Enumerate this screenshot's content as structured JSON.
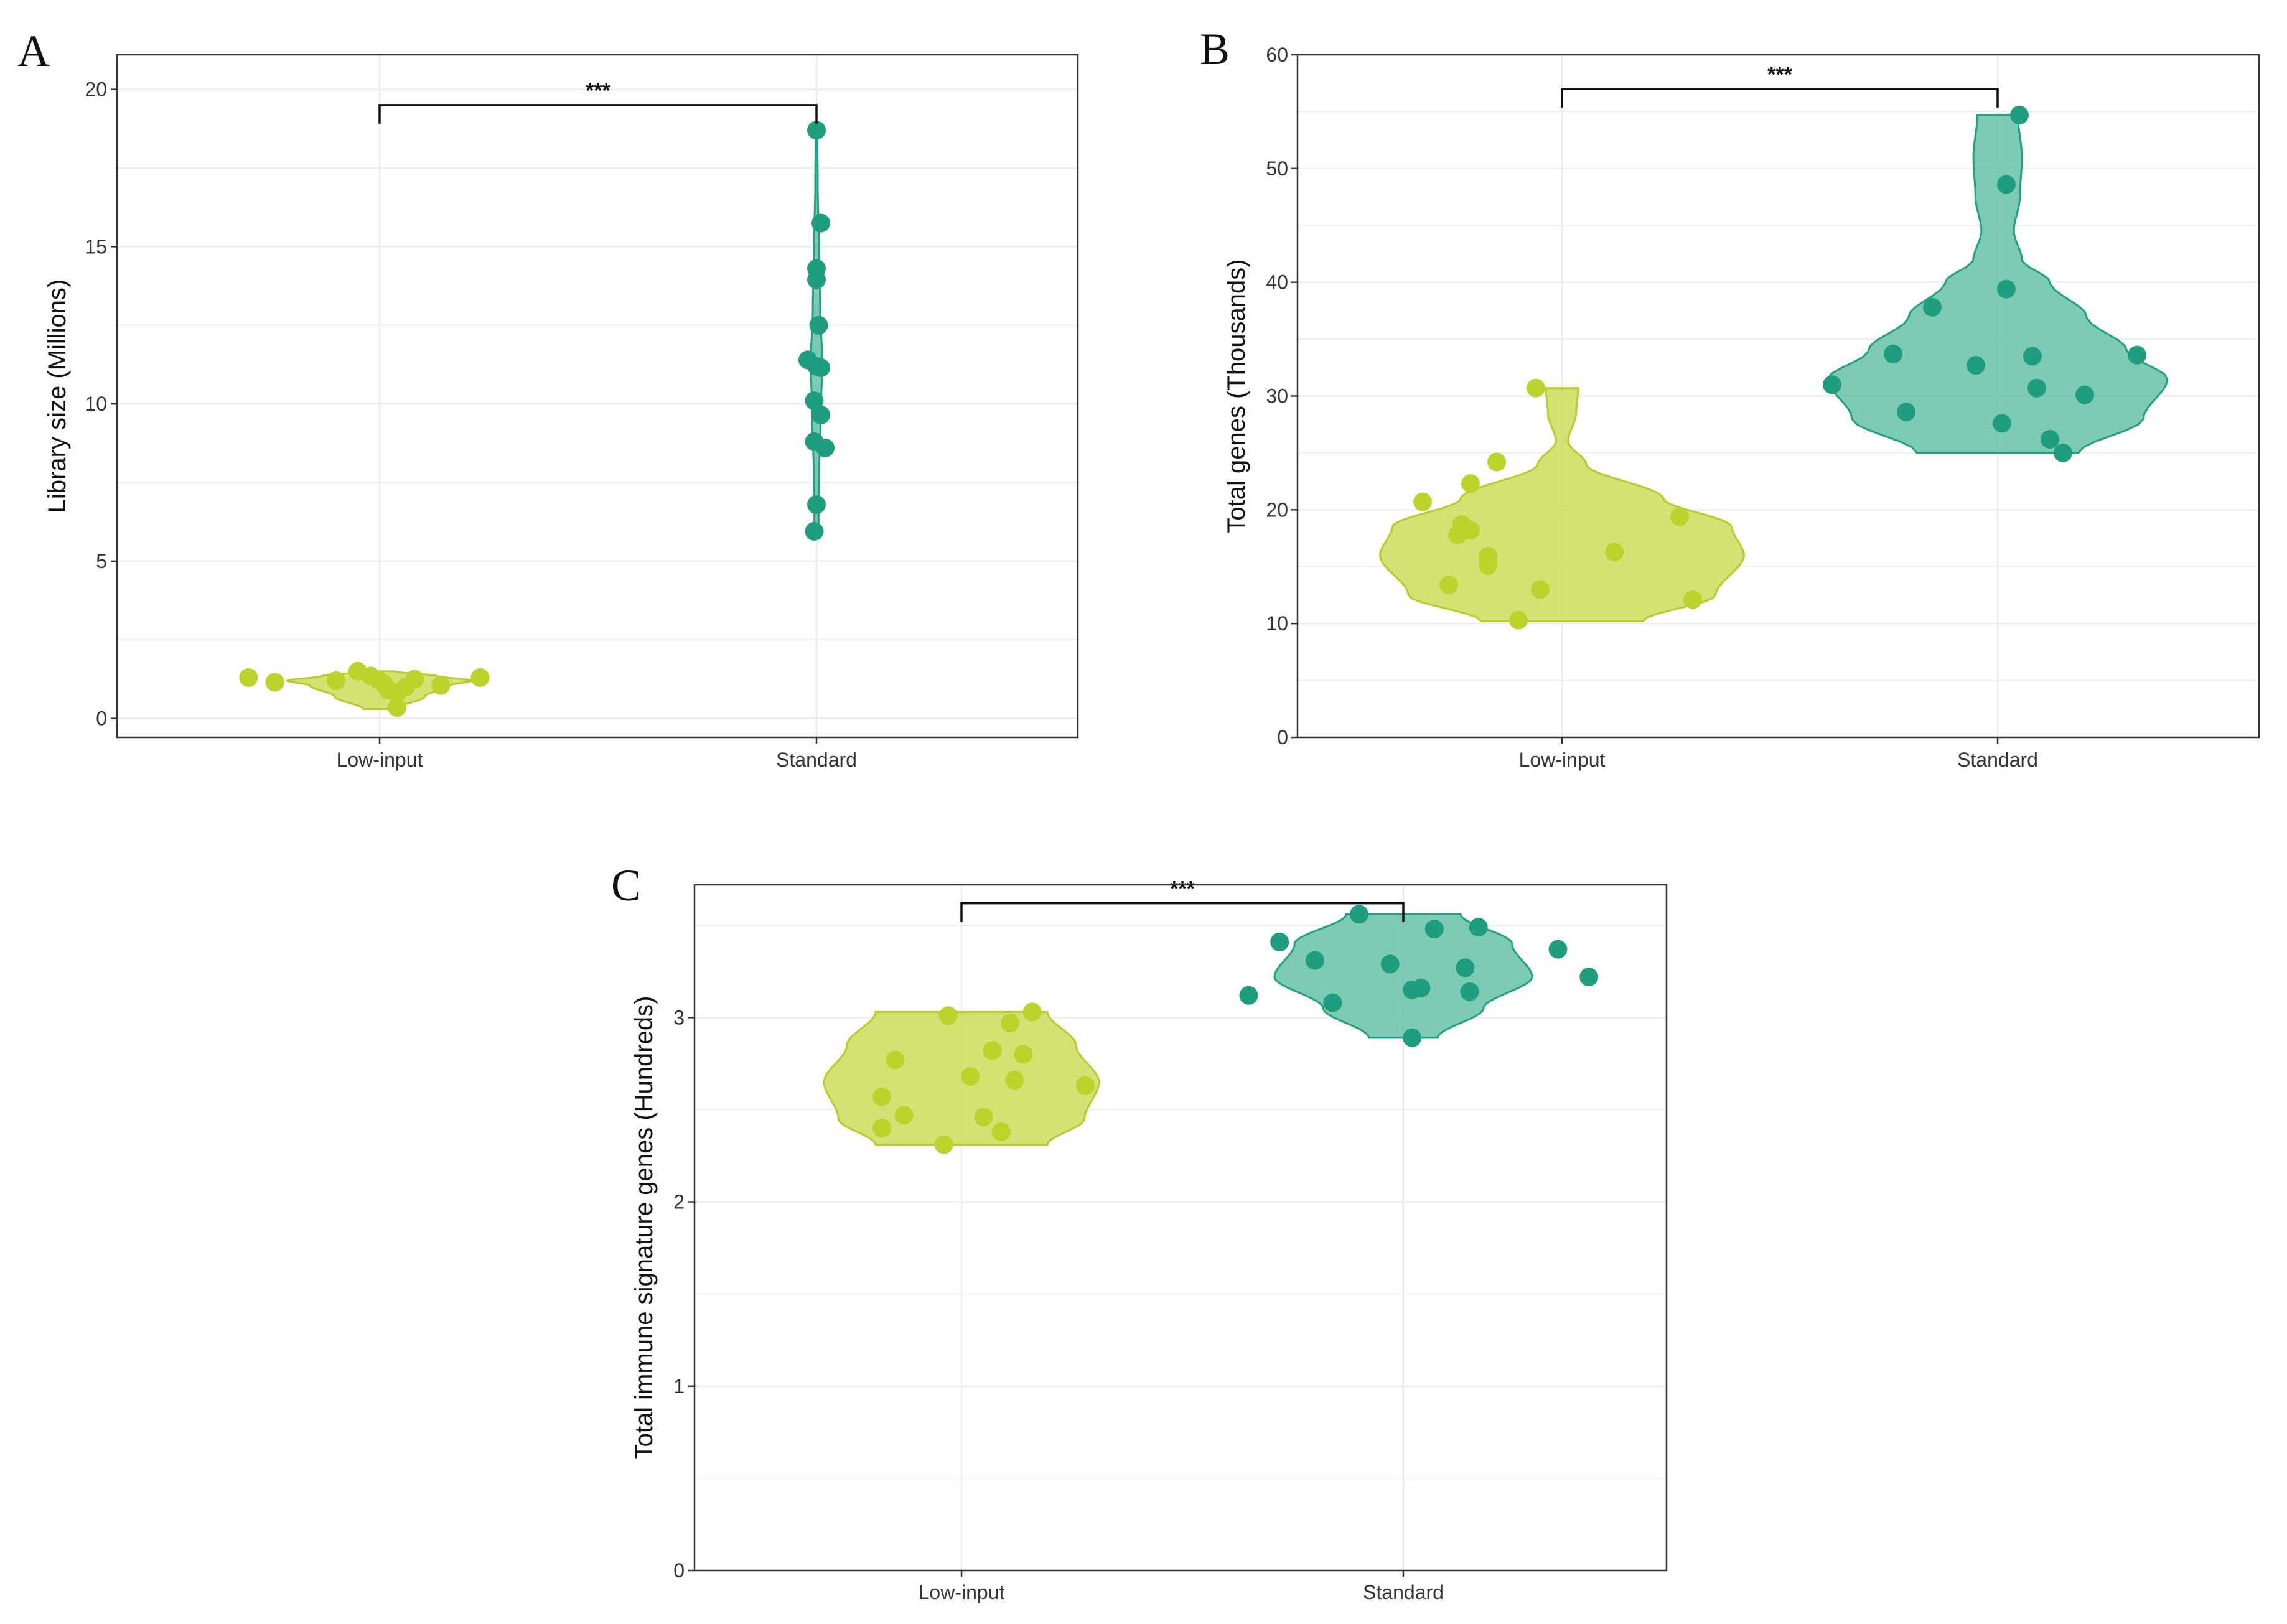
{
  "colors": {
    "low_input_fill": "#cddc5a",
    "low_input_stroke": "#b5cc2a",
    "low_input_point": "#bcd32c",
    "standard_fill": "#66c2a8",
    "standard_stroke": "#21a083",
    "standard_point": "#1f9e7f",
    "grid": "#ebebeb",
    "frame": "#333333"
  },
  "chart_data": [
    {
      "panel": "A",
      "type": "violin",
      "ylabel": "Library size (Millions)",
      "xlabel": "",
      "categories": [
        "Low-input",
        "Standard"
      ],
      "ylim": [
        -0.6,
        21.1
      ],
      "yticks": [
        0,
        5,
        10,
        15,
        20
      ],
      "grid": true,
      "significance": {
        "label": "***",
        "y": 19.5
      },
      "series": [
        {
          "category": "Low-input",
          "values": [
            1.3,
            1.15,
            1.2,
            1.5,
            1.35,
            1.2,
            1.1,
            0.9,
            0.8,
            1.0,
            1.25,
            1.05,
            1.3,
            0.35
          ],
          "jitter": [
            -0.3,
            -0.24,
            -0.1,
            -0.05,
            -0.02,
            0.0,
            0.01,
            0.02,
            0.04,
            0.06,
            0.08,
            0.14,
            0.23,
            0.04
          ],
          "density": [
            [
              0.3,
              0.08
            ],
            [
              0.7,
              0.22
            ],
            [
              1.05,
              0.34
            ],
            [
              1.2,
              0.45
            ],
            [
              1.35,
              0.28
            ],
            [
              1.5,
              0.07
            ]
          ]
        },
        {
          "category": "Standard",
          "values": [
            18.7,
            15.75,
            14.3,
            13.95,
            12.5,
            11.4,
            11.2,
            11.15,
            10.1,
            9.65,
            8.8,
            8.6,
            6.8,
            5.95
          ],
          "jitter": [
            0.0,
            0.01,
            0.0,
            0.0,
            0.005,
            -0.02,
            0.0,
            0.01,
            -0.005,
            0.01,
            -0.005,
            0.02,
            0.0,
            -0.005
          ],
          "density": [
            [
              5.95,
              0.01
            ],
            [
              7.5,
              0.012
            ],
            [
              9.5,
              0.02
            ],
            [
              11.3,
              0.028
            ],
            [
              13.0,
              0.018
            ],
            [
              15.0,
              0.012
            ],
            [
              17.0,
              0.006
            ],
            [
              18.7,
              0.004
            ]
          ]
        }
      ]
    },
    {
      "panel": "B",
      "type": "violin",
      "ylabel": "Total genes (Thousands)",
      "xlabel": "",
      "categories": [
        "Low-input",
        "Standard"
      ],
      "ylim": [
        0,
        60
      ],
      "yticks": [
        0,
        10,
        20,
        30,
        40,
        50,
        60
      ],
      "grid": true,
      "significance": {
        "label": "***",
        "y": 57
      },
      "series": [
        {
          "category": "Low-input",
          "values": [
            30.7,
            24.2,
            22.3,
            20.7,
            19.4,
            18.7,
            18.2,
            17.8,
            16.3,
            15.9,
            15.1,
            13.4,
            13.0,
            12.1,
            10.3
          ],
          "jitter": [
            -0.06,
            -0.15,
            -0.21,
            -0.32,
            0.27,
            -0.23,
            -0.21,
            -0.24,
            0.12,
            -0.17,
            -0.17,
            -0.26,
            -0.05,
            0.3,
            -0.1
          ],
          "density": [
            [
              10.2,
              0.2
            ],
            [
              12.5,
              0.38
            ],
            [
              16.0,
              0.45
            ],
            [
              18.5,
              0.42
            ],
            [
              21.0,
              0.25
            ],
            [
              24.0,
              0.06
            ],
            [
              26.0,
              0.015
            ],
            [
              28.5,
              0.035
            ],
            [
              30.7,
              0.04
            ]
          ]
        },
        {
          "category": "Standard",
          "values": [
            54.7,
            48.6,
            39.4,
            37.8,
            33.7,
            33.5,
            33.6,
            32.7,
            31.0,
            30.7,
            30.1,
            28.6,
            27.6,
            26.2,
            25.0
          ],
          "jitter": [
            0.05,
            0.02,
            0.02,
            -0.15,
            -0.24,
            0.08,
            0.32,
            -0.05,
            -0.38,
            0.09,
            0.2,
            -0.21,
            0.01,
            0.12,
            0.15
          ],
          "density": [
            [
              25.0,
              0.2
            ],
            [
              28.0,
              0.36
            ],
            [
              31.5,
              0.42
            ],
            [
              34.0,
              0.32
            ],
            [
              37.0,
              0.22
            ],
            [
              40.0,
              0.13
            ],
            [
              42.0,
              0.06
            ],
            [
              44.5,
              0.04
            ],
            [
              47.5,
              0.055
            ],
            [
              51.0,
              0.06
            ],
            [
              54.7,
              0.05
            ]
          ]
        }
      ]
    },
    {
      "panel": "C",
      "type": "violin",
      "ylabel": "Total immune signature genes (Hundreds)",
      "xlabel": "",
      "categories": [
        "Low-input",
        "Standard"
      ],
      "ylim": [
        0,
        3.72
      ],
      "yticks": [
        0,
        1,
        2,
        3
      ],
      "grid": true,
      "significance": {
        "label": "***",
        "y": 3.62
      },
      "series": [
        {
          "category": "Low-input",
          "values": [
            3.03,
            3.01,
            2.97,
            2.82,
            2.8,
            2.77,
            2.68,
            2.66,
            2.63,
            2.57,
            2.47,
            2.46,
            2.4,
            2.38,
            2.31
          ],
          "jitter": [
            0.16,
            -0.03,
            0.11,
            0.07,
            0.14,
            -0.15,
            0.02,
            0.12,
            0.28,
            -0.18,
            -0.13,
            0.05,
            -0.18,
            0.09,
            -0.04
          ],
          "density": [
            [
              2.31,
              0.3
            ],
            [
              2.45,
              0.43
            ],
            [
              2.65,
              0.48
            ],
            [
              2.85,
              0.4
            ],
            [
              3.03,
              0.3
            ]
          ]
        },
        {
          "category": "Standard",
          "values": [
            3.56,
            3.49,
            3.48,
            3.41,
            3.37,
            3.31,
            3.29,
            3.27,
            3.22,
            3.16,
            3.15,
            3.14,
            3.12,
            3.08,
            2.89
          ],
          "jitter": [
            -0.1,
            0.17,
            0.07,
            -0.28,
            0.35,
            -0.2,
            -0.03,
            0.14,
            0.42,
            0.04,
            0.02,
            0.15,
            -0.35,
            -0.16,
            0.02
          ],
          "density": [
            [
              2.89,
              0.12
            ],
            [
              3.05,
              0.28
            ],
            [
              3.22,
              0.45
            ],
            [
              3.4,
              0.38
            ],
            [
              3.56,
              0.2
            ]
          ]
        }
      ]
    }
  ]
}
